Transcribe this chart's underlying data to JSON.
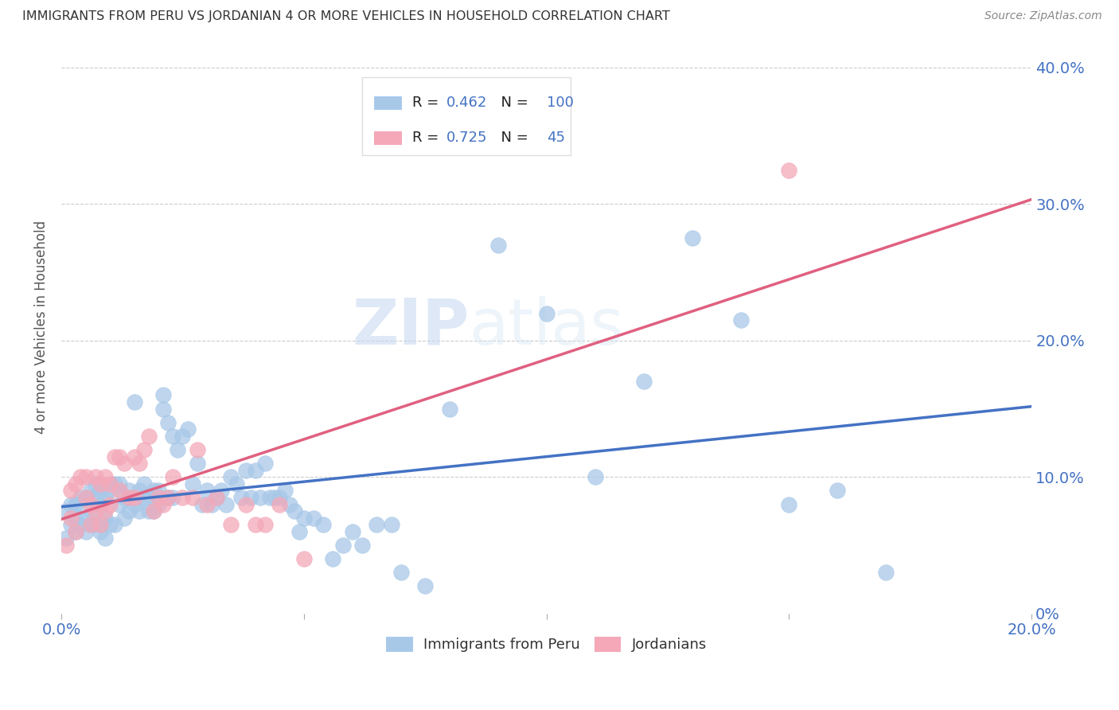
{
  "title": "IMMIGRANTS FROM PERU VS JORDANIAN 4 OR MORE VEHICLES IN HOUSEHOLD CORRELATION CHART",
  "source": "Source: ZipAtlas.com",
  "ylabel": "4 or more Vehicles in Household",
  "watermark_zip": "ZIP",
  "watermark_atlas": "atlas",
  "legend_peru_R": "0.462",
  "legend_peru_N": "100",
  "legend_jordan_R": "0.725",
  "legend_jordan_N": "45",
  "peru_color": "#a8c8e8",
  "jordan_color": "#f4a8b8",
  "peru_line_color": "#4472c4",
  "jordan_line_color": "#e06080",
  "axis_label_color": "#4472c4",
  "background_color": "#ffffff",
  "grid_color": "#cccccc",
  "xlim": [
    0,
    0.2
  ],
  "ylim": [
    0,
    0.42
  ],
  "xticks": [
    0.0,
    0.05,
    0.1,
    0.15,
    0.2
  ],
  "yticks": [
    0.0,
    0.1,
    0.2,
    0.3,
    0.4
  ],
  "xtick_labels": [
    "0.0%",
    "",
    "",
    "",
    "20.0%"
  ],
  "ytick_labels_right": [
    "0%",
    "10.0%",
    "20.0%",
    "30.0%",
    "40.0%"
  ],
  "peru_scatter_x": [
    0.001,
    0.001,
    0.002,
    0.002,
    0.003,
    0.003,
    0.003,
    0.004,
    0.004,
    0.005,
    0.005,
    0.005,
    0.006,
    0.006,
    0.007,
    0.007,
    0.007,
    0.008,
    0.008,
    0.008,
    0.009,
    0.009,
    0.01,
    0.01,
    0.011,
    0.011,
    0.012,
    0.012,
    0.013,
    0.013,
    0.014,
    0.014,
    0.015,
    0.015,
    0.016,
    0.016,
    0.017,
    0.017,
    0.018,
    0.018,
    0.019,
    0.019,
    0.02,
    0.02,
    0.021,
    0.021,
    0.022,
    0.022,
    0.023,
    0.023,
    0.024,
    0.025,
    0.026,
    0.027,
    0.028,
    0.029,
    0.03,
    0.031,
    0.032,
    0.033,
    0.034,
    0.035,
    0.036,
    0.037,
    0.038,
    0.039,
    0.04,
    0.041,
    0.042,
    0.043,
    0.044,
    0.045,
    0.046,
    0.047,
    0.048,
    0.049,
    0.05,
    0.052,
    0.054,
    0.056,
    0.058,
    0.06,
    0.062,
    0.065,
    0.068,
    0.07,
    0.075,
    0.08,
    0.09,
    0.1,
    0.11,
    0.12,
    0.13,
    0.14,
    0.15,
    0.16,
    0.17,
    0.003,
    0.006,
    0.009
  ],
  "peru_scatter_y": [
    0.055,
    0.075,
    0.065,
    0.08,
    0.06,
    0.07,
    0.08,
    0.065,
    0.085,
    0.06,
    0.07,
    0.085,
    0.075,
    0.09,
    0.085,
    0.095,
    0.065,
    0.08,
    0.09,
    0.06,
    0.07,
    0.085,
    0.065,
    0.09,
    0.095,
    0.065,
    0.08,
    0.095,
    0.085,
    0.07,
    0.09,
    0.075,
    0.155,
    0.08,
    0.075,
    0.09,
    0.085,
    0.095,
    0.075,
    0.085,
    0.075,
    0.09,
    0.08,
    0.09,
    0.15,
    0.16,
    0.085,
    0.14,
    0.085,
    0.13,
    0.12,
    0.13,
    0.135,
    0.095,
    0.11,
    0.08,
    0.09,
    0.08,
    0.085,
    0.09,
    0.08,
    0.1,
    0.095,
    0.085,
    0.105,
    0.085,
    0.105,
    0.085,
    0.11,
    0.085,
    0.085,
    0.085,
    0.09,
    0.08,
    0.075,
    0.06,
    0.07,
    0.07,
    0.065,
    0.04,
    0.05,
    0.06,
    0.05,
    0.065,
    0.065,
    0.03,
    0.02,
    0.15,
    0.27,
    0.22,
    0.1,
    0.17,
    0.275,
    0.215,
    0.08,
    0.09,
    0.03,
    0.08,
    0.065,
    0.055
  ],
  "jordan_scatter_x": [
    0.001,
    0.002,
    0.002,
    0.003,
    0.003,
    0.004,
    0.005,
    0.005,
    0.006,
    0.006,
    0.007,
    0.007,
    0.008,
    0.008,
    0.009,
    0.009,
    0.01,
    0.01,
    0.011,
    0.012,
    0.012,
    0.013,
    0.014,
    0.015,
    0.015,
    0.016,
    0.017,
    0.018,
    0.019,
    0.02,
    0.021,
    0.022,
    0.023,
    0.025,
    0.027,
    0.028,
    0.03,
    0.032,
    0.035,
    0.038,
    0.04,
    0.042,
    0.045,
    0.05,
    0.15
  ],
  "jordan_scatter_y": [
    0.05,
    0.09,
    0.07,
    0.06,
    0.095,
    0.1,
    0.085,
    0.1,
    0.065,
    0.08,
    0.1,
    0.075,
    0.065,
    0.095,
    0.075,
    0.1,
    0.08,
    0.095,
    0.115,
    0.09,
    0.115,
    0.11,
    0.085,
    0.085,
    0.115,
    0.11,
    0.12,
    0.13,
    0.075,
    0.085,
    0.08,
    0.085,
    0.1,
    0.085,
    0.085,
    0.12,
    0.08,
    0.085,
    0.065,
    0.08,
    0.065,
    0.065,
    0.08,
    0.04,
    0.325
  ]
}
